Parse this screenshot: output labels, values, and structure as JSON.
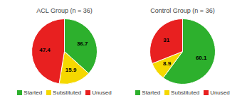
{
  "chart_data": [
    {
      "type": "pie",
      "title": "ACL Group (n = 36)",
      "categories": [
        "Started",
        "Substituted",
        "Unused"
      ],
      "values": [
        36.7,
        15.9,
        47.4
      ],
      "colors": [
        "#2db02d",
        "#f5d800",
        "#e82020"
      ],
      "data_labels": true,
      "legend": "bottom"
    },
    {
      "type": "pie",
      "title": "Control Group (n = 36)",
      "categories": [
        "Started",
        "Substituted",
        "Unused"
      ],
      "values": [
        60.1,
        8.9,
        31.0
      ],
      "colors": [
        "#2db02d",
        "#f5d800",
        "#e82020"
      ],
      "data_labels": true,
      "legend": "bottom"
    }
  ]
}
